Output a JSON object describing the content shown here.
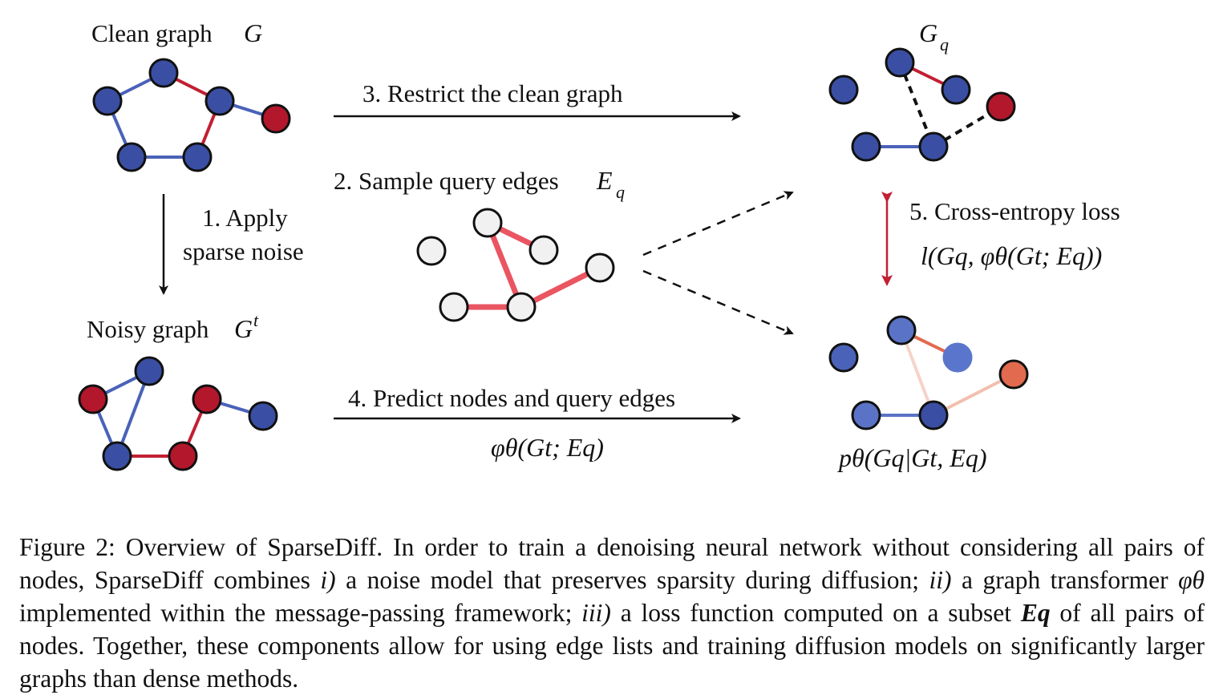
{
  "figure": {
    "labels": {
      "clean_graph": "Clean graph",
      "clean_graph_symbol": "G",
      "noisy_graph": "Noisy graph",
      "noisy_graph_symbol": "G",
      "noisy_graph_sup": "t",
      "gq_symbol": "G",
      "gq_sub": "q",
      "step1_line1": "1. Apply",
      "step1_line2": "sparse noise",
      "step2": "2. Sample query edges",
      "step2_symbol": "E",
      "step2_sub": "q",
      "step3": "3. Restrict the clean graph",
      "step4": "4.  Predict nodes and query edges",
      "step4_formula": "φθ(Gt; Eq)",
      "step5": "5. Cross-entropy loss",
      "step5_formula": "l(Gq, φθ(Gt; Eq))",
      "output_formula": "pθ(Gq|Gt, Eq)"
    }
  },
  "caption": {
    "prefix": "Figure 2: Overview of SparseDiff. In order to train a denoising neural network without considering all pairs of nodes, SparseDiff combines ",
    "i_marker": "i)",
    "part_i": " a noise model that preserves sparsity during diffusion; ",
    "ii_marker": "ii)",
    "part_ii_a": " a graph transformer ",
    "phi_symbol": "φθ",
    "part_ii_b": " implemented within the message-passing framework; ",
    "iii_marker": "iii)",
    "part_iii_a": " a loss function computed on a subset ",
    "eq_symbol": "Eq",
    "part_iii_b": " of all pairs of nodes.  Together, these components allow for using edge lists and training diffusion models on significantly larger graphs than dense methods."
  },
  "colors": {
    "node_blue": "#3a4fa3",
    "node_red": "#b3172c",
    "edge_blue": "#4a62b8",
    "edge_red": "#c21f33",
    "query_edge": "#ea5562",
    "node_gray": "#f1f1f1",
    "pred_blue": "#5a73c6",
    "pred_orange": "#e26a4e"
  }
}
